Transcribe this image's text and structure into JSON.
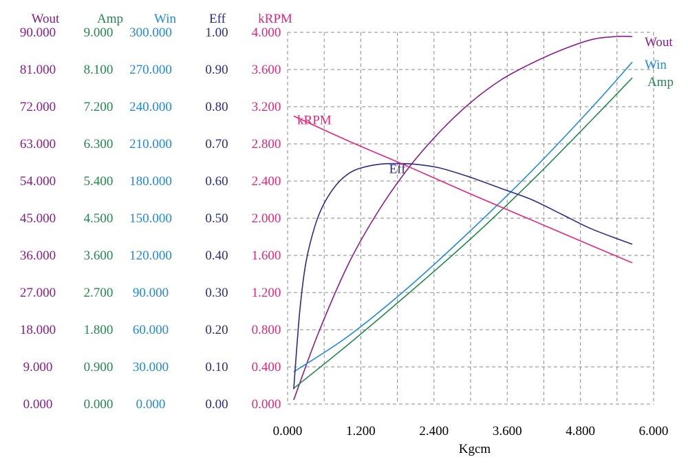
{
  "chart_data": {
    "type": "line",
    "xlabel": "Kgcm",
    "xlim": [
      0,
      6
    ],
    "x_ticks": [
      "0.000",
      "1.200",
      "2.400",
      "3.600",
      "4.800",
      "6.000"
    ],
    "grid": true,
    "axes": [
      {
        "key": "wout",
        "label": "Wout",
        "color": "#8b1a8b",
        "range": [
          0,
          90
        ],
        "ticks": [
          "0.000",
          "9.000",
          "18.000",
          "27.000",
          "36.000",
          "45.000",
          "54.000",
          "63.000",
          "72.000",
          "81.000",
          "90.000"
        ]
      },
      {
        "key": "amp",
        "label": "Amp",
        "color": "#1f8a4c",
        "range": [
          0,
          9
        ],
        "ticks": [
          "0.000",
          "0.900",
          "1.800",
          "2.700",
          "3.600",
          "4.500",
          "5.400",
          "6.300",
          "7.200",
          "8.100",
          "9.000"
        ]
      },
      {
        "key": "win",
        "label": "Win",
        "color": "#1e88e5",
        "range": [
          0,
          300
        ],
        "ticks": [
          "0.000",
          "30.000",
          "60.000",
          "90.000",
          "120.000",
          "150.000",
          "180.000",
          "210.000",
          "240.000",
          "270.000",
          "300.000"
        ]
      },
      {
        "key": "eff",
        "label": "Eff",
        "color": "#2a2a8a",
        "range": [
          0,
          1
        ],
        "ticks": [
          "0.00",
          "0.10",
          "0.20",
          "0.30",
          "0.40",
          "0.50",
          "0.60",
          "0.70",
          "0.80",
          "0.90",
          "1.00"
        ]
      },
      {
        "key": "krpm",
        "label": "kRPM",
        "color": "#e8247a",
        "range": [
          0,
          4
        ],
        "ticks": [
          "0.000",
          "0.400",
          "0.800",
          "1.200",
          "1.600",
          "2.000",
          "2.400",
          "2.800",
          "3.200",
          "3.600",
          "4.000"
        ]
      }
    ],
    "series": [
      {
        "name": "Wout",
        "axis": "wout",
        "color": "#8b1a8b",
        "x": [
          0.1,
          0.5,
          1.0,
          1.5,
          2.0,
          2.5,
          3.0,
          3.5,
          4.0,
          4.5,
          5.0,
          5.4,
          5.65
        ],
        "y": [
          1.0,
          17.0,
          34.0,
          47.0,
          57.5,
          66.0,
          73.0,
          78.5,
          82.5,
          85.8,
          88.3,
          89.0,
          89.0
        ]
      },
      {
        "name": "Amp",
        "axis": "amp",
        "color": "#1f8a4c",
        "x": [
          0.1,
          1.0,
          2.0,
          3.0,
          4.0,
          5.0,
          5.65
        ],
        "y": [
          0.38,
          1.45,
          2.7,
          4.0,
          5.4,
          6.9,
          7.9
        ]
      },
      {
        "name": "Win",
        "axis": "win",
        "color": "#1e88e5",
        "x": [
          0.1,
          1.0,
          2.0,
          3.0,
          4.0,
          5.0,
          5.65
        ],
        "y": [
          26.0,
          55.0,
          95.0,
          140.0,
          188.0,
          240.0,
          276.0
        ]
      },
      {
        "name": "Eff",
        "axis": "eff",
        "color": "#2a2a8a",
        "x": [
          0.1,
          0.2,
          0.3,
          0.45,
          0.6,
          0.8,
          1.0,
          1.2,
          1.5,
          1.8,
          2.1,
          2.5,
          3.0,
          3.5,
          4.0,
          4.5,
          5.0,
          5.65
        ],
        "y": [
          0.04,
          0.25,
          0.38,
          0.48,
          0.54,
          0.59,
          0.62,
          0.635,
          0.645,
          0.647,
          0.645,
          0.635,
          0.61,
          0.58,
          0.55,
          0.51,
          0.47,
          0.43
        ]
      },
      {
        "name": "kRPM",
        "axis": "krpm",
        "color": "#e8247a",
        "x": [
          0.1,
          1.0,
          2.0,
          3.0,
          4.0,
          5.0,
          5.65
        ],
        "y": [
          3.1,
          2.83,
          2.55,
          2.26,
          1.98,
          1.7,
          1.52
        ]
      }
    ]
  }
}
